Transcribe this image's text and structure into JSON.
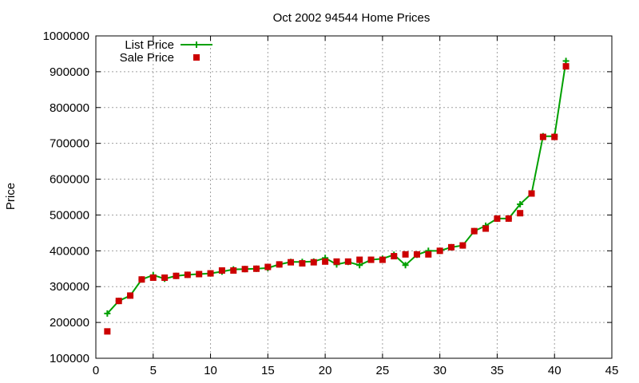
{
  "chart_data": {
    "type": "line",
    "title": "Oct 2002 94544 Home Prices",
    "xlabel": "",
    "ylabel": "Price",
    "xlim": [
      0,
      45
    ],
    "ylim": [
      100000,
      1000000
    ],
    "xticks": [
      0,
      5,
      10,
      15,
      20,
      25,
      30,
      35,
      40,
      45
    ],
    "yticks": [
      100000,
      200000,
      300000,
      400000,
      500000,
      600000,
      700000,
      800000,
      900000,
      1000000
    ],
    "grid": true,
    "legend_position": "top-left",
    "series": [
      {
        "name": "List Price",
        "style": "line+cross",
        "color": "#00a000",
        "points": [
          [
            1,
            225000
          ],
          [
            2,
            260000
          ],
          [
            3,
            275000
          ],
          [
            4,
            320000
          ],
          [
            5,
            332000
          ],
          [
            6,
            322000
          ],
          [
            7,
            330000
          ],
          [
            8,
            333000
          ],
          [
            9,
            335000
          ],
          [
            10,
            337000
          ],
          [
            11,
            342000
          ],
          [
            12,
            348000
          ],
          [
            13,
            349000
          ],
          [
            14,
            350000
          ],
          [
            15,
            352000
          ],
          [
            16,
            362000
          ],
          [
            17,
            369000
          ],
          [
            18,
            369000
          ],
          [
            19,
            370000
          ],
          [
            20,
            380000
          ],
          [
            21,
            362000
          ],
          [
            22,
            369000
          ],
          [
            23,
            360000
          ],
          [
            24,
            375000
          ],
          [
            25,
            378000
          ],
          [
            26,
            389000
          ],
          [
            27,
            360000
          ],
          [
            28,
            389000
          ],
          [
            29,
            400000
          ],
          [
            30,
            400000
          ],
          [
            31,
            410000
          ],
          [
            32,
            415000
          ],
          [
            33,
            455000
          ],
          [
            34,
            470000
          ],
          [
            35,
            490000
          ],
          [
            36,
            490000
          ],
          [
            37,
            530000
          ],
          [
            38,
            560000
          ],
          [
            39,
            720000
          ],
          [
            40,
            720000
          ],
          [
            41,
            930000
          ]
        ]
      },
      {
        "name": "Sale Price",
        "style": "square",
        "color": "#cc0000",
        "points": [
          [
            1,
            175000
          ],
          [
            2,
            260000
          ],
          [
            3,
            275000
          ],
          [
            4,
            320000
          ],
          [
            5,
            325000
          ],
          [
            6,
            325000
          ],
          [
            7,
            330000
          ],
          [
            8,
            333000
          ],
          [
            9,
            335000
          ],
          [
            10,
            337000
          ],
          [
            11,
            345000
          ],
          [
            12,
            345000
          ],
          [
            13,
            349000
          ],
          [
            14,
            350000
          ],
          [
            15,
            355000
          ],
          [
            16,
            362000
          ],
          [
            17,
            368000
          ],
          [
            18,
            365000
          ],
          [
            19,
            368000
          ],
          [
            20,
            370000
          ],
          [
            21,
            370000
          ],
          [
            22,
            370000
          ],
          [
            23,
            375000
          ],
          [
            24,
            375000
          ],
          [
            25,
            375000
          ],
          [
            26,
            385000
          ],
          [
            27,
            390000
          ],
          [
            28,
            390000
          ],
          [
            29,
            390000
          ],
          [
            30,
            400000
          ],
          [
            31,
            410000
          ],
          [
            32,
            415000
          ],
          [
            33,
            455000
          ],
          [
            34,
            462000
          ],
          [
            35,
            490000
          ],
          [
            36,
            490000
          ],
          [
            37,
            505000
          ],
          [
            38,
            560000
          ],
          [
            39,
            718000
          ],
          [
            40,
            718000
          ],
          [
            41,
            915000
          ]
        ]
      }
    ]
  }
}
